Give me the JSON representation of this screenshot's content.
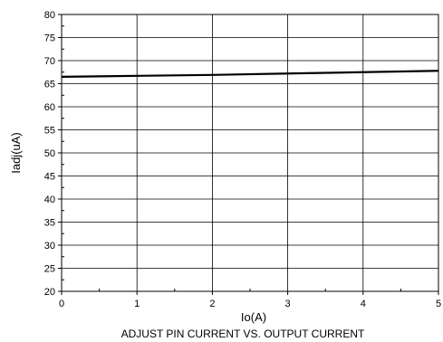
{
  "chart_data": {
    "type": "line",
    "title": "ADJUST PIN CURRENT VS. OUTPUT CURRENT",
    "xlabel": "Io(A)",
    "ylabel": "Iadj(uA)",
    "xlim": [
      0,
      5
    ],
    "ylim": [
      20,
      80
    ],
    "xticks": [
      "0",
      "1",
      "2",
      "3",
      "4",
      "5"
    ],
    "yticks": [
      "20",
      "25",
      "30",
      "35",
      "40",
      "45",
      "50",
      "55",
      "60",
      "65",
      "70",
      "75",
      "80"
    ],
    "grid": true,
    "series": [
      {
        "x": [
          0,
          1,
          2,
          3,
          4,
          5
        ],
        "y": [
          66.5,
          66.7,
          66.9,
          67.2,
          67.5,
          67.8
        ]
      }
    ]
  },
  "colors": {
    "line": "#000000",
    "grid": "#000000",
    "background": "#ffffff"
  }
}
